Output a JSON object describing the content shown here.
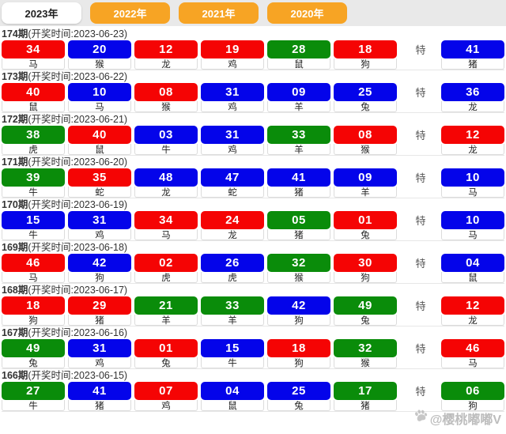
{
  "tabs": [
    {
      "label": "2023年",
      "active": true
    },
    {
      "label": "2022年",
      "active": false
    },
    {
      "label": "2021年",
      "active": false
    },
    {
      "label": "2020年",
      "active": false
    }
  ],
  "special_marker": "特",
  "colors": {
    "red": "#f50404",
    "blue": "#0404ea",
    "green": "#0a8c0a",
    "tab_orange": "#f7a424",
    "tab_strip_bg": "#e9e9e9"
  },
  "watermark": {
    "icon": "paw-icon",
    "text": "@樱桃嘟嘟V"
  },
  "rows": [
    {
      "period_label": "174期",
      "draw_time_label": "(开奖时间:2023-06-23)",
      "balls": [
        {
          "num": "34",
          "color": "red",
          "zodiac": "马"
        },
        {
          "num": "20",
          "color": "blue",
          "zodiac": "猴"
        },
        {
          "num": "12",
          "color": "red",
          "zodiac": "龙"
        },
        {
          "num": "19",
          "color": "red",
          "zodiac": "鸡"
        },
        {
          "num": "28",
          "color": "green",
          "zodiac": "鼠"
        },
        {
          "num": "18",
          "color": "red",
          "zodiac": "狗"
        }
      ],
      "special": {
        "num": "41",
        "color": "blue",
        "zodiac": "猪"
      }
    },
    {
      "period_label": "173期",
      "draw_time_label": "(开奖时间:2023-06-22)",
      "balls": [
        {
          "num": "40",
          "color": "red",
          "zodiac": "鼠"
        },
        {
          "num": "10",
          "color": "blue",
          "zodiac": "马"
        },
        {
          "num": "08",
          "color": "red",
          "zodiac": "猴"
        },
        {
          "num": "31",
          "color": "blue",
          "zodiac": "鸡"
        },
        {
          "num": "09",
          "color": "blue",
          "zodiac": "羊"
        },
        {
          "num": "25",
          "color": "blue",
          "zodiac": "兔"
        }
      ],
      "special": {
        "num": "36",
        "color": "blue",
        "zodiac": "龙"
      }
    },
    {
      "period_label": "172期",
      "draw_time_label": "(开奖时间:2023-06-21)",
      "balls": [
        {
          "num": "38",
          "color": "green",
          "zodiac": "虎"
        },
        {
          "num": "40",
          "color": "red",
          "zodiac": "鼠"
        },
        {
          "num": "03",
          "color": "blue",
          "zodiac": "牛"
        },
        {
          "num": "31",
          "color": "blue",
          "zodiac": "鸡"
        },
        {
          "num": "33",
          "color": "green",
          "zodiac": "羊"
        },
        {
          "num": "08",
          "color": "red",
          "zodiac": "猴"
        }
      ],
      "special": {
        "num": "12",
        "color": "red",
        "zodiac": "龙"
      }
    },
    {
      "period_label": "171期",
      "draw_time_label": "(开奖时间:2023-06-20)",
      "balls": [
        {
          "num": "39",
          "color": "green",
          "zodiac": "牛"
        },
        {
          "num": "35",
          "color": "red",
          "zodiac": "蛇"
        },
        {
          "num": "48",
          "color": "blue",
          "zodiac": "龙"
        },
        {
          "num": "47",
          "color": "blue",
          "zodiac": "蛇"
        },
        {
          "num": "41",
          "color": "blue",
          "zodiac": "猪"
        },
        {
          "num": "09",
          "color": "blue",
          "zodiac": "羊"
        }
      ],
      "special": {
        "num": "10",
        "color": "blue",
        "zodiac": "马"
      }
    },
    {
      "period_label": "170期",
      "draw_time_label": "(开奖时间:2023-06-19)",
      "balls": [
        {
          "num": "15",
          "color": "blue",
          "zodiac": "牛"
        },
        {
          "num": "31",
          "color": "blue",
          "zodiac": "鸡"
        },
        {
          "num": "34",
          "color": "red",
          "zodiac": "马"
        },
        {
          "num": "24",
          "color": "red",
          "zodiac": "龙"
        },
        {
          "num": "05",
          "color": "green",
          "zodiac": "猪"
        },
        {
          "num": "01",
          "color": "red",
          "zodiac": "兔"
        }
      ],
      "special": {
        "num": "10",
        "color": "blue",
        "zodiac": "马"
      }
    },
    {
      "period_label": "169期",
      "draw_time_label": "(开奖时间:2023-06-18)",
      "balls": [
        {
          "num": "46",
          "color": "red",
          "zodiac": "马"
        },
        {
          "num": "42",
          "color": "blue",
          "zodiac": "狗"
        },
        {
          "num": "02",
          "color": "red",
          "zodiac": "虎"
        },
        {
          "num": "26",
          "color": "blue",
          "zodiac": "虎"
        },
        {
          "num": "32",
          "color": "green",
          "zodiac": "猴"
        },
        {
          "num": "30",
          "color": "red",
          "zodiac": "狗"
        }
      ],
      "special": {
        "num": "04",
        "color": "blue",
        "zodiac": "鼠"
      }
    },
    {
      "period_label": "168期",
      "draw_time_label": "(开奖时间:2023-06-17)",
      "balls": [
        {
          "num": "18",
          "color": "red",
          "zodiac": "狗"
        },
        {
          "num": "29",
          "color": "red",
          "zodiac": "猪"
        },
        {
          "num": "21",
          "color": "green",
          "zodiac": "羊"
        },
        {
          "num": "33",
          "color": "green",
          "zodiac": "羊"
        },
        {
          "num": "42",
          "color": "blue",
          "zodiac": "狗"
        },
        {
          "num": "49",
          "color": "green",
          "zodiac": "兔"
        }
      ],
      "special": {
        "num": "12",
        "color": "red",
        "zodiac": "龙"
      }
    },
    {
      "period_label": "167期",
      "draw_time_label": "(开奖时间:2023-06-16)",
      "balls": [
        {
          "num": "49",
          "color": "green",
          "zodiac": "兔"
        },
        {
          "num": "31",
          "color": "blue",
          "zodiac": "鸡"
        },
        {
          "num": "01",
          "color": "red",
          "zodiac": "兔"
        },
        {
          "num": "15",
          "color": "blue",
          "zodiac": "牛"
        },
        {
          "num": "18",
          "color": "red",
          "zodiac": "狗"
        },
        {
          "num": "32",
          "color": "green",
          "zodiac": "猴"
        }
      ],
      "special": {
        "num": "46",
        "color": "red",
        "zodiac": "马"
      }
    },
    {
      "period_label": "166期",
      "draw_time_label": "(开奖时间:2023-06-15)",
      "balls": [
        {
          "num": "27",
          "color": "green",
          "zodiac": "牛"
        },
        {
          "num": "41",
          "color": "blue",
          "zodiac": "猪"
        },
        {
          "num": "07",
          "color": "red",
          "zodiac": "鸡"
        },
        {
          "num": "04",
          "color": "blue",
          "zodiac": "鼠"
        },
        {
          "num": "25",
          "color": "blue",
          "zodiac": "兔"
        },
        {
          "num": "17",
          "color": "green",
          "zodiac": "猪"
        }
      ],
      "special": {
        "num": "06",
        "color": "green",
        "zodiac": "狗"
      }
    }
  ]
}
